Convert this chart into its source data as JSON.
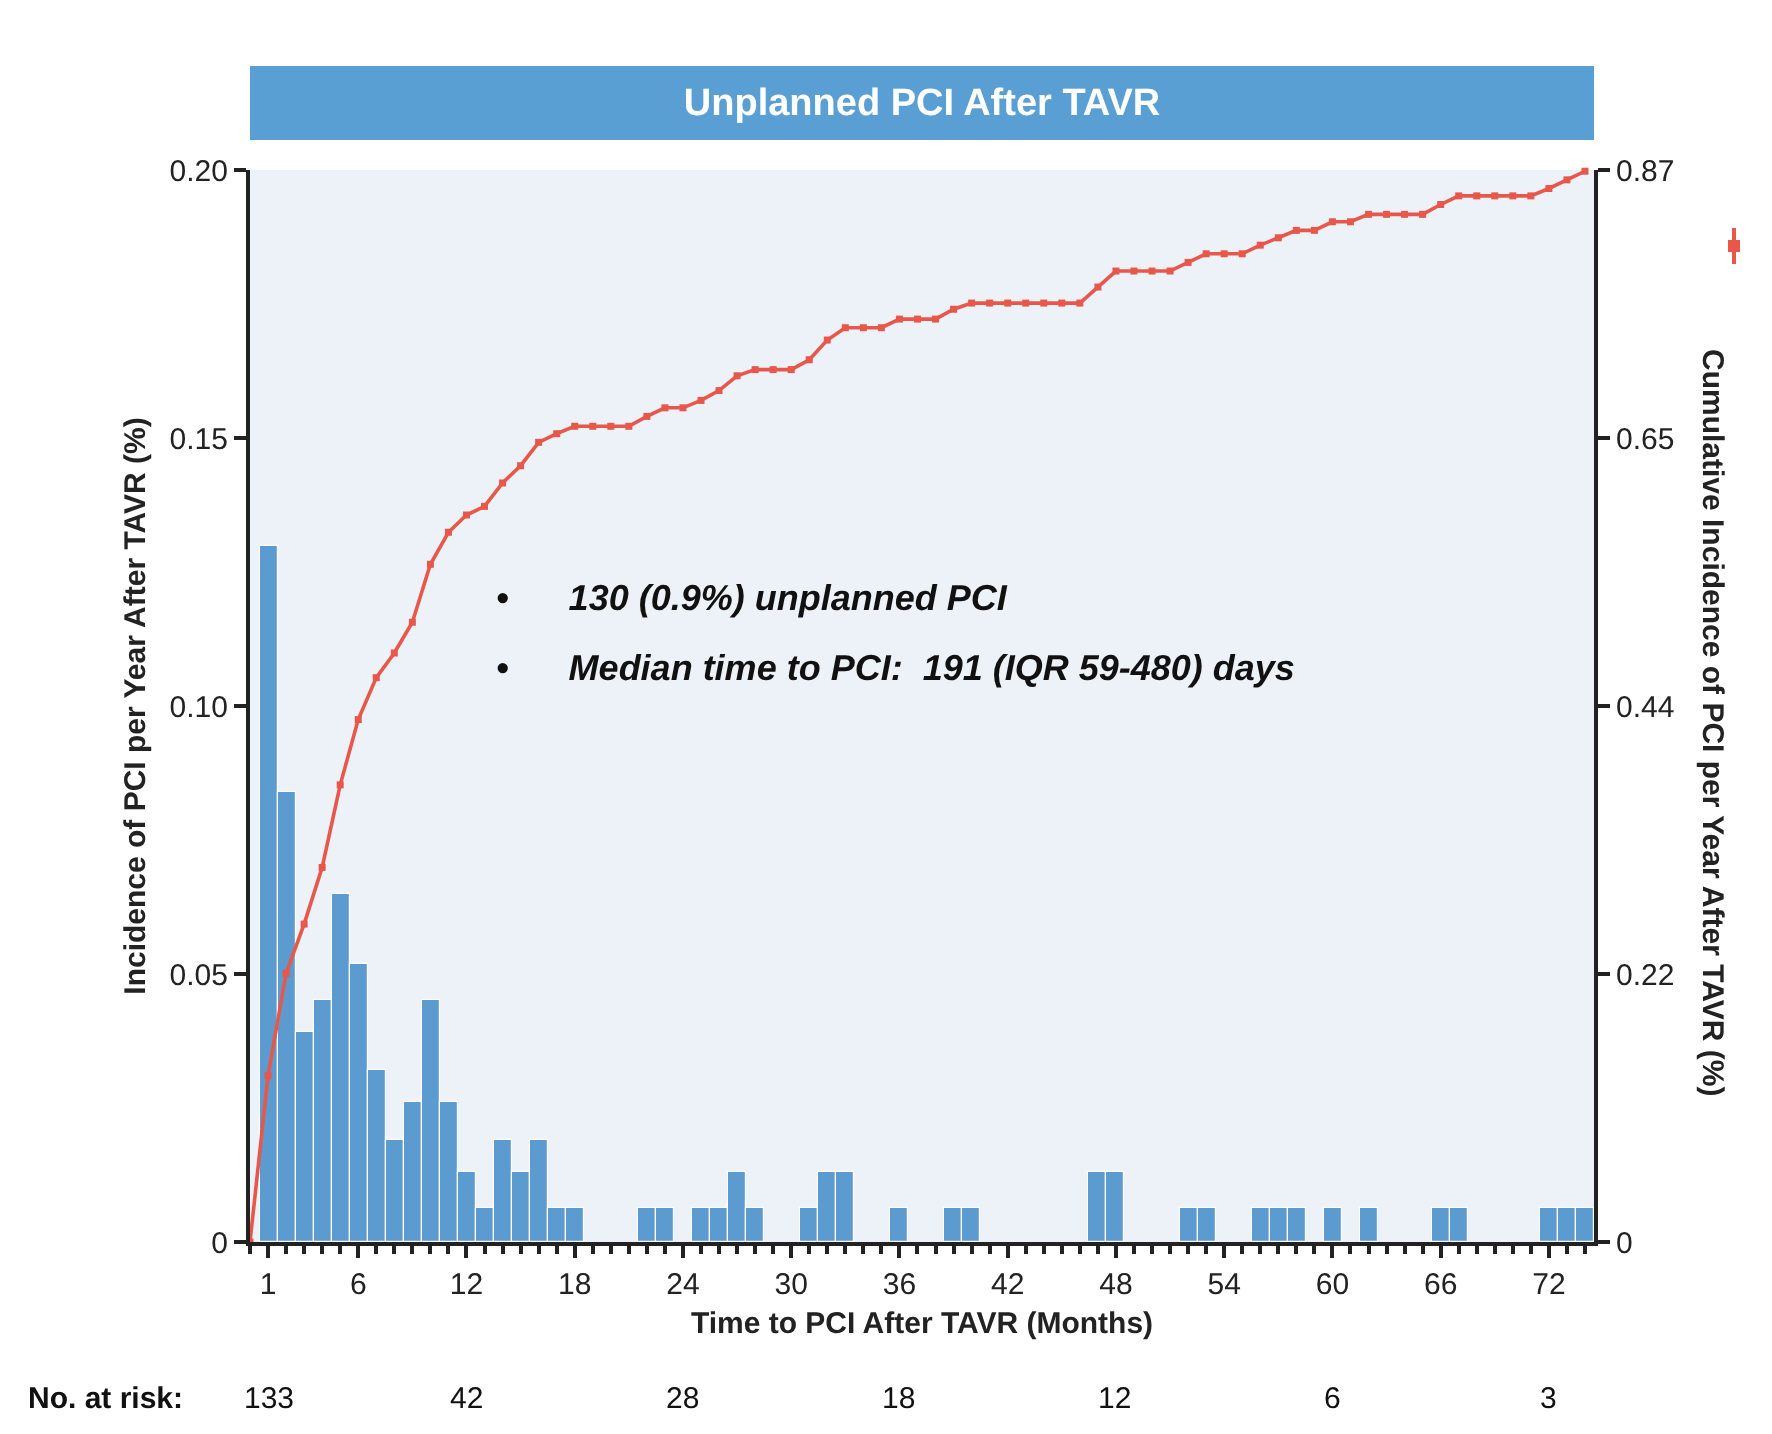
{
  "chart_data": {
    "type": "bar",
    "title": "Unplanned PCI After TAVR",
    "xlabel": "Time to PCI After TAVR (Months)",
    "ylabel": "Incidence of PCI per Year After TAVR (%)",
    "y2label": "Cumulative Incidence of PCI per Year After TAVR (%)",
    "xlim": [
      0,
      74.5
    ],
    "xticks": [
      1,
      6,
      12,
      18,
      24,
      30,
      36,
      42,
      48,
      54,
      60,
      66,
      72
    ],
    "ylim": [
      0,
      0.2
    ],
    "yticks": [
      0,
      0.05,
      {
        "value": 0.1,
        "label": "0.10"
      },
      0.15,
      {
        "value": 0.2,
        "label": "0.20"
      }
    ],
    "y2lim": [
      0,
      0.87
    ],
    "y2ticks": [
      0,
      {
        "value": 0.2175,
        "label": "0.22"
      },
      {
        "value": 0.435,
        "label": "0.44"
      },
      {
        "value": 0.6525,
        "label": "0.65"
      },
      0.87
    ],
    "grid": false,
    "marker": "square",
    "line_style": "solid",
    "series": [
      {
        "color": "#5b9bd0",
        "x": [
          1,
          2,
          3,
          4,
          5,
          6,
          7,
          8,
          9,
          10,
          11,
          12,
          13,
          14,
          15,
          16,
          17,
          18,
          19,
          20,
          21,
          22,
          23,
          24,
          25,
          26,
          27,
          28,
          29,
          30,
          31,
          32,
          33,
          34,
          35,
          36,
          37,
          38,
          39,
          40,
          41,
          42,
          43,
          44,
          45,
          46,
          47,
          48,
          49,
          50,
          51,
          52,
          53,
          54,
          55,
          56,
          57,
          58,
          59,
          60,
          61,
          62,
          63,
          64,
          65,
          66,
          67,
          68,
          69,
          70,
          71,
          72,
          73,
          74
        ],
        "values": [
          0.13,
          0.084,
          0.039,
          0.045,
          0.065,
          0.052,
          0.032,
          0.019,
          0.026,
          0.045,
          0.026,
          0.013,
          0.0065,
          0.019,
          0.013,
          0.019,
          0.0065,
          0.0065,
          0,
          0,
          0,
          0.0065,
          0.0065,
          0,
          0.0065,
          0.0065,
          0.013,
          0.0065,
          0,
          0,
          0.0065,
          0.013,
          0.013,
          0,
          0,
          0.0065,
          0,
          0,
          0.0065,
          0.0065,
          0,
          0,
          0,
          0,
          0,
          0,
          0.013,
          0.013,
          0,
          0,
          0,
          0.0065,
          0.0065,
          0,
          0,
          0.0065,
          0.0065,
          0.0065,
          0,
          0.0065,
          0,
          0.0065,
          0,
          0,
          0,
          0.0065,
          0.0065,
          0,
          0,
          0,
          0,
          0.0065,
          0.0065,
          0.0065
        ]
      },
      {
        "type": "line",
        "axis": "y2",
        "color": "#e8584a",
        "x": [
          0,
          1,
          2,
          3,
          4,
          5,
          6,
          7,
          8,
          9,
          10,
          11,
          12,
          13,
          14,
          15,
          16,
          17,
          18,
          19,
          20,
          21,
          22,
          23,
          24,
          25,
          26,
          27,
          28,
          29,
          30,
          31,
          32,
          33,
          34,
          35,
          36,
          37,
          38,
          39,
          40,
          41,
          42,
          43,
          44,
          45,
          46,
          47,
          48,
          49,
          50,
          51,
          52,
          53,
          54,
          55,
          56,
          57,
          58,
          59,
          60,
          61,
          62,
          63,
          64,
          65,
          66,
          67,
          68,
          69,
          70,
          71,
          72,
          73,
          74
        ],
        "values": [
          0,
          0.135,
          0.218,
          0.258,
          0.304,
          0.371,
          0.424,
          0.458,
          0.478,
          0.503,
          0.55,
          0.576,
          0.59,
          0.597,
          0.616,
          0.63,
          0.649,
          0.656,
          0.662,
          0.662,
          0.662,
          0.662,
          0.67,
          0.677,
          0.677,
          0.683,
          0.691,
          0.703,
          0.708,
          0.708,
          0.708,
          0.716,
          0.732,
          0.742,
          0.742,
          0.742,
          0.749,
          0.749,
          0.749,
          0.757,
          0.762,
          0.762,
          0.762,
          0.762,
          0.762,
          0.762,
          0.762,
          0.775,
          0.788,
          0.788,
          0.788,
          0.788,
          0.795,
          0.802,
          0.802,
          0.802,
          0.809,
          0.815,
          0.821,
          0.821,
          0.828,
          0.828,
          0.834,
          0.834,
          0.834,
          0.834,
          0.842,
          0.849,
          0.849,
          0.849,
          0.849,
          0.849,
          0.855,
          0.862,
          0.869
        ]
      }
    ],
    "annotations": [
      "•      130 (0.9%) unplanned PCI",
      "•      Median time to PCI:  191 (IQR 59-480) days",
      "No. at risk:",
      "133",
      "42",
      "28",
      "18",
      "12",
      "6",
      "3"
    ]
  }
}
